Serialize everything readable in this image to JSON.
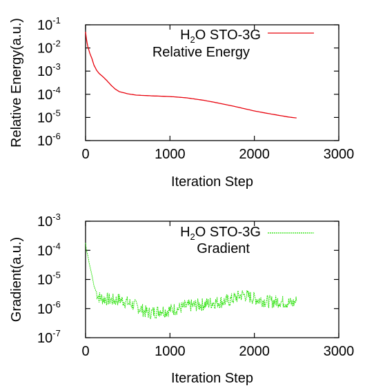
{
  "chart_data": [
    {
      "type": "line",
      "ylabel": "Relative Energy(a.u.)",
      "xlabel": "Iteration Step",
      "yscale": "log",
      "xlim": [
        0,
        3000
      ],
      "ylim": [
        1e-06,
        0.1
      ],
      "xticks": [
        "0",
        "1000",
        "2000",
        "3000"
      ],
      "yticks": [
        {
          "base": "10",
          "exp": "-6"
        },
        {
          "base": "10",
          "exp": "-5"
        },
        {
          "base": "10",
          "exp": "-4"
        },
        {
          "base": "10",
          "exp": "-3"
        },
        {
          "base": "10",
          "exp": "-2"
        },
        {
          "base": "10",
          "exp": "-1"
        }
      ],
      "legend_position": "top-right",
      "legend": {
        "molecule": "H",
        "sub": "2",
        "rest": "O STO-3G",
        "line2": "Relative Energy"
      },
      "series": [
        {
          "color": "#e8000b",
          "style": "solid",
          "points": [
            [
              0,
              0.05
            ],
            [
              10,
              0.025
            ],
            [
              25,
              0.012
            ],
            [
              50,
              0.006
            ],
            [
              75,
              0.0035
            ],
            [
              100,
              0.0018
            ],
            [
              130,
              0.0011
            ],
            [
              160,
              0.0008
            ],
            [
              200,
              0.0006
            ],
            [
              250,
              0.0004
            ],
            [
              300,
              0.00025
            ],
            [
              350,
              0.00017
            ],
            [
              400,
              0.00013
            ],
            [
              500,
              0.000105
            ],
            [
              600,
              9.2e-05
            ],
            [
              800,
              8.5e-05
            ],
            [
              1000,
              8e-05
            ],
            [
              1200,
              7e-05
            ],
            [
              1400,
              5.5e-05
            ],
            [
              1600,
              4e-05
            ],
            [
              1800,
              2.8e-05
            ],
            [
              2000,
              1.9e-05
            ],
            [
              2200,
              1.4e-05
            ],
            [
              2400,
              1.05e-05
            ],
            [
              2500,
              9.5e-06
            ]
          ]
        }
      ]
    },
    {
      "type": "line",
      "ylabel": "Gradient(a.u.)",
      "xlabel": "Iteration Step",
      "yscale": "log",
      "xlim": [
        0,
        3000
      ],
      "ylim": [
        1e-07,
        0.001
      ],
      "xticks": [
        "0",
        "1000",
        "2000",
        "3000"
      ],
      "yticks": [
        {
          "base": "10",
          "exp": "-7"
        },
        {
          "base": "10",
          "exp": "-6"
        },
        {
          "base": "10",
          "exp": "-5"
        },
        {
          "base": "10",
          "exp": "-4"
        },
        {
          "base": "10",
          "exp": "-3"
        }
      ],
      "legend_position": "top-right",
      "legend": {
        "molecule": "H",
        "sub": "2",
        "rest": "O STO-3G",
        "line2": "Gradient"
      },
      "series": [
        {
          "color": "#22e000",
          "style": "dashed",
          "points": [
            [
              0,
              0.00018
            ],
            [
              10,
              0.0001
            ],
            [
              25,
              7e-05
            ],
            [
              40,
              4e-05
            ],
            [
              60,
              2.2e-05
            ],
            [
              80,
              1.2e-05
            ],
            [
              100,
              6e-06
            ],
            [
              130,
              3.5e-06
            ],
            [
              160,
              2.5e-06
            ],
            [
              200,
              2.2e-06
            ],
            [
              250,
              2.1e-06
            ],
            [
              300,
              2e-06
            ],
            [
              350,
              1.9e-06
            ],
            [
              400,
              2.1e-06
            ],
            [
              450,
              1.8e-06
            ],
            [
              500,
              1.6e-06
            ],
            [
              550,
              1.4e-06
            ],
            [
              600,
              1.2e-06
            ],
            [
              650,
              1e-06
            ],
            [
              700,
              8e-07
            ],
            [
              750,
              7e-07
            ],
            [
              800,
              7.5e-07
            ],
            [
              850,
              8e-07
            ],
            [
              900,
              9e-07
            ],
            [
              950,
              8e-07
            ],
            [
              1000,
              9e-07
            ],
            [
              1050,
              9.5e-07
            ],
            [
              1100,
              1e-06
            ],
            [
              1150,
              1.1e-06
            ],
            [
              1200,
              1.2e-06
            ],
            [
              1300,
              1.3e-06
            ],
            [
              1400,
              1.4e-06
            ],
            [
              1500,
              1.6e-06
            ],
            [
              1600,
              1.7e-06
            ],
            [
              1700,
              1.9e-06
            ],
            [
              1800,
              2.5e-06
            ],
            [
              1850,
              3e-06
            ],
            [
              1900,
              2.8e-06
            ],
            [
              2000,
              2.2e-06
            ],
            [
              2100,
              1.9e-06
            ],
            [
              2200,
              1.7e-06
            ],
            [
              2300,
              1.8e-06
            ],
            [
              2400,
              1.6e-06
            ],
            [
              2450,
              1.5e-06
            ],
            [
              2500,
              1.8e-06
            ]
          ]
        }
      ]
    }
  ]
}
